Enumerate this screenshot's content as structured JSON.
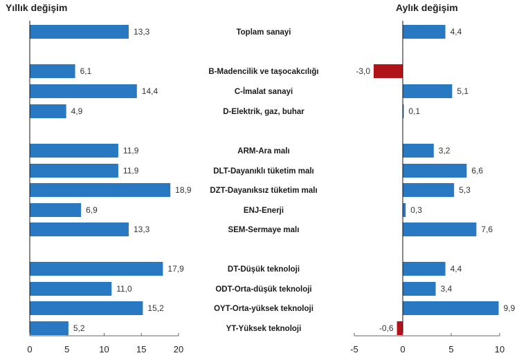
{
  "chart_data": [
    {
      "type": "bar",
      "orientation": "horizontal",
      "title": "Yıllık değişim",
      "categories": [
        "Toplam sanayi",
        "B-Madencilik ve taşocakcılığı",
        "C-İmalat sanayi",
        "D-Elektrik, gaz, buhar",
        "ARM-Ara malı",
        "DLT-Dayanıklı tüketim malı",
        "DZT-Dayanıksız tüketim malı",
        "ENJ-Enerji",
        "SEM-Sermaye malı",
        "DT-Düşük teknoloji",
        "ODT-Orta-düşük teknoloji",
        "OYT-Orta-yüksek teknoloji",
        "YT-Yüksek teknoloji"
      ],
      "values": [
        13.3,
        6.1,
        14.4,
        4.9,
        11.9,
        11.9,
        18.9,
        6.9,
        13.3,
        17.9,
        11.0,
        15.2,
        5.2
      ],
      "value_labels": [
        "13,3",
        "6,1",
        "14,4",
        "4,9",
        "11,9",
        "11,9",
        "18,9",
        "6,9",
        "13,3",
        "17,9",
        "11,0",
        "15,2",
        "5,2"
      ],
      "xlim": [
        0,
        20
      ],
      "xticks": [
        0,
        5,
        10,
        15,
        20
      ],
      "xtick_labels": [
        "0",
        "5",
        "10",
        "15",
        "20"
      ],
      "positive_color": "#2878c2",
      "negative_color": "#b01418",
      "grid": false,
      "legend": "none"
    },
    {
      "type": "bar",
      "orientation": "horizontal",
      "title": "Aylık değişim",
      "categories": [
        "Toplam sanayi",
        "B-Madencilik ve taşocakcılığı",
        "C-İmalat sanayi",
        "D-Elektrik, gaz, buhar",
        "ARM-Ara malı",
        "DLT-Dayanıklı tüketim malı",
        "DZT-Dayanıksız tüketim malı",
        "ENJ-Enerji",
        "SEM-Sermaye malı",
        "DT-Düşük teknoloji",
        "ODT-Orta-düşük teknoloji",
        "OYT-Orta-yüksek teknoloji",
        "YT-Yüksek teknoloji"
      ],
      "values": [
        4.4,
        -3.0,
        5.1,
        0.1,
        3.2,
        6.6,
        5.3,
        0.3,
        7.6,
        4.4,
        3.4,
        9.9,
        -0.6
      ],
      "value_labels": [
        "4,4",
        "-3,0",
        "5,1",
        "0,1",
        "3,2",
        "6,6",
        "5,3",
        "0,3",
        "7,6",
        "4,4",
        "3,4",
        "9,9",
        "-0,6"
      ],
      "xlim": [
        -5,
        10
      ],
      "xticks": [
        -5,
        0,
        5,
        10
      ],
      "xtick_labels": [
        "-5",
        "0",
        "5",
        "10"
      ],
      "positive_color": "#2878c2",
      "negative_color": "#b01418",
      "grid": false,
      "legend": "none"
    }
  ]
}
